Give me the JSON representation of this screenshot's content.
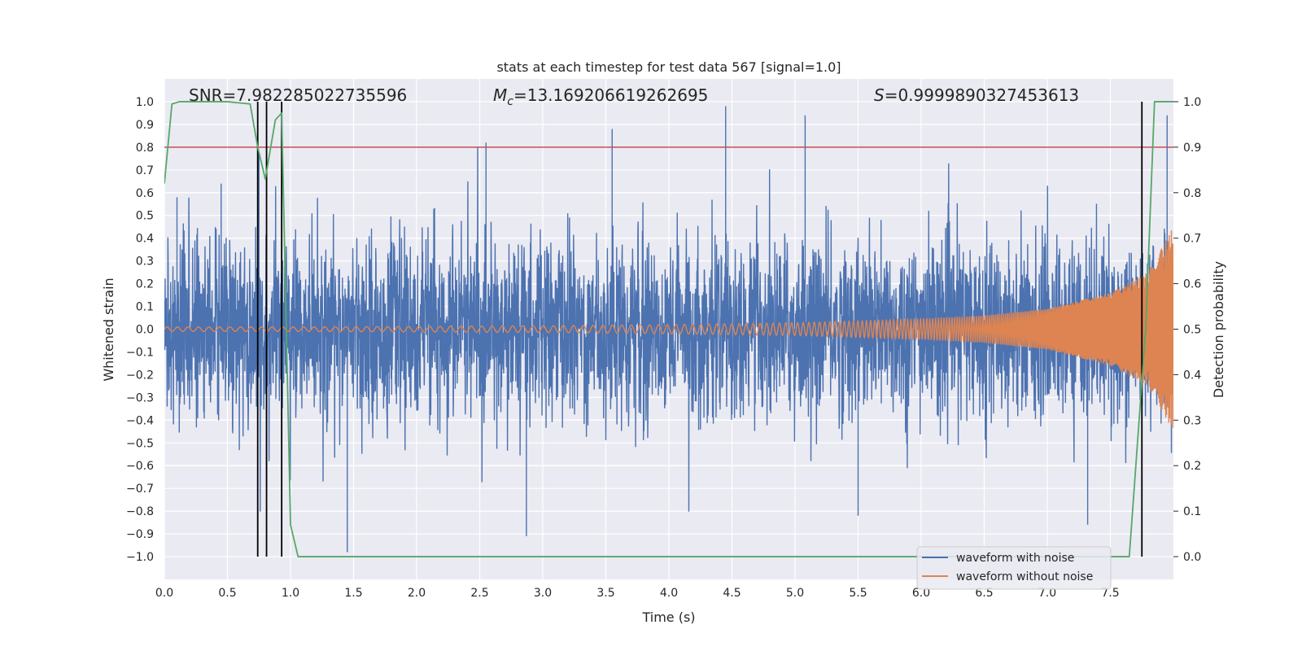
{
  "chart_data": {
    "type": "line",
    "title": "stats at each timestep for test data 567 [signal=1.0]",
    "xlabel": "Time (s)",
    "ylabel": "Whitened strain",
    "y2label": "Detection probability",
    "xlim": [
      0.0,
      8.0
    ],
    "ylim": [
      -1.1,
      1.1
    ],
    "y2lim": [
      -0.05,
      1.05
    ],
    "xticks": [
      "0.0",
      "0.5",
      "1.0",
      "1.5",
      "2.0",
      "2.5",
      "3.0",
      "3.5",
      "4.0",
      "4.5",
      "5.0",
      "5.5",
      "6.0",
      "6.5",
      "7.0",
      "7.5"
    ],
    "yticks": [
      "1.0",
      "0.9",
      "0.8",
      "0.7",
      "0.6",
      "0.5",
      "0.4",
      "0.3",
      "0.2",
      "0.1",
      "0.0",
      "−0.1",
      "−0.2",
      "−0.3",
      "−0.4",
      "−0.5",
      "−0.6",
      "−0.7",
      "−0.8",
      "−0.9",
      "−1.0"
    ],
    "y2ticks": [
      "1.0",
      "0.9",
      "0.8",
      "0.7",
      "0.6",
      "0.5",
      "0.4",
      "0.3",
      "0.2",
      "0.1",
      "0.0"
    ],
    "annotations": {
      "snr": "SNR=7.982285022735596",
      "mc_symbol": "M",
      "mc_sub": "c",
      "mc_value": "=13.169206619262695",
      "s_symbol": "S",
      "s_value": "=0.9999890327453613"
    },
    "threshold": 0.9,
    "vlines_x": [
      0.74,
      0.81,
      0.93,
      7.75
    ],
    "series": [
      {
        "name": "waveform with noise",
        "color": "#4c72b0",
        "axis": "left",
        "description": "dense noisy whitened strain, approx range -0.97 to 0.98",
        "peaks_x": [
          0.1,
          0.45,
          0.75,
          1.45,
          2.55,
          2.87,
          3.55,
          4.45,
          5.08,
          5.5,
          7.32,
          7.95
        ],
        "peaks_y": [
          0.58,
          0.64,
          0.78,
          -0.98,
          0.82,
          -0.91,
          0.88,
          0.98,
          0.94,
          -0.82,
          -0.86,
          0.94
        ]
      },
      {
        "name": "waveform without noise",
        "color": "#dd8452",
        "axis": "left",
        "description": "chirp signal, amplitude grows from ~0.01 to ~0.45 near t=8.0",
        "amplitude_x": [
          0.0,
          1.0,
          2.0,
          3.0,
          4.0,
          5.0,
          6.0,
          6.5,
          7.0,
          7.5,
          7.8,
          8.0
        ],
        "amplitude_y": [
          0.01,
          0.01,
          0.012,
          0.015,
          0.02,
          0.028,
          0.045,
          0.06,
          0.09,
          0.16,
          0.25,
          0.45
        ]
      },
      {
        "name": "detection probability",
        "color": "#55a868",
        "axis": "right",
        "x": [
          0.0,
          0.06,
          0.12,
          0.3,
          0.5,
          0.68,
          0.74,
          0.8,
          0.88,
          0.93,
          0.98,
          1.0,
          1.06,
          1.5,
          7.0,
          7.65,
          7.78,
          7.85,
          8.0
        ],
        "y": [
          0.82,
          0.995,
          1.0,
          1.0,
          1.0,
          0.995,
          0.9,
          0.83,
          0.96,
          0.975,
          0.33,
          0.07,
          0.0,
          0.0,
          0.0,
          0.0,
          0.5,
          1.0,
          1.0
        ]
      }
    ],
    "legend_position": "bottom-right",
    "colors": {
      "plot_bg": "#eaeaf2",
      "grid": "#ffffff",
      "noise": "#4c72b0",
      "signal": "#dd8452",
      "prob": "#55a868",
      "threshold": "#c44e52",
      "vline": "#000000"
    }
  }
}
